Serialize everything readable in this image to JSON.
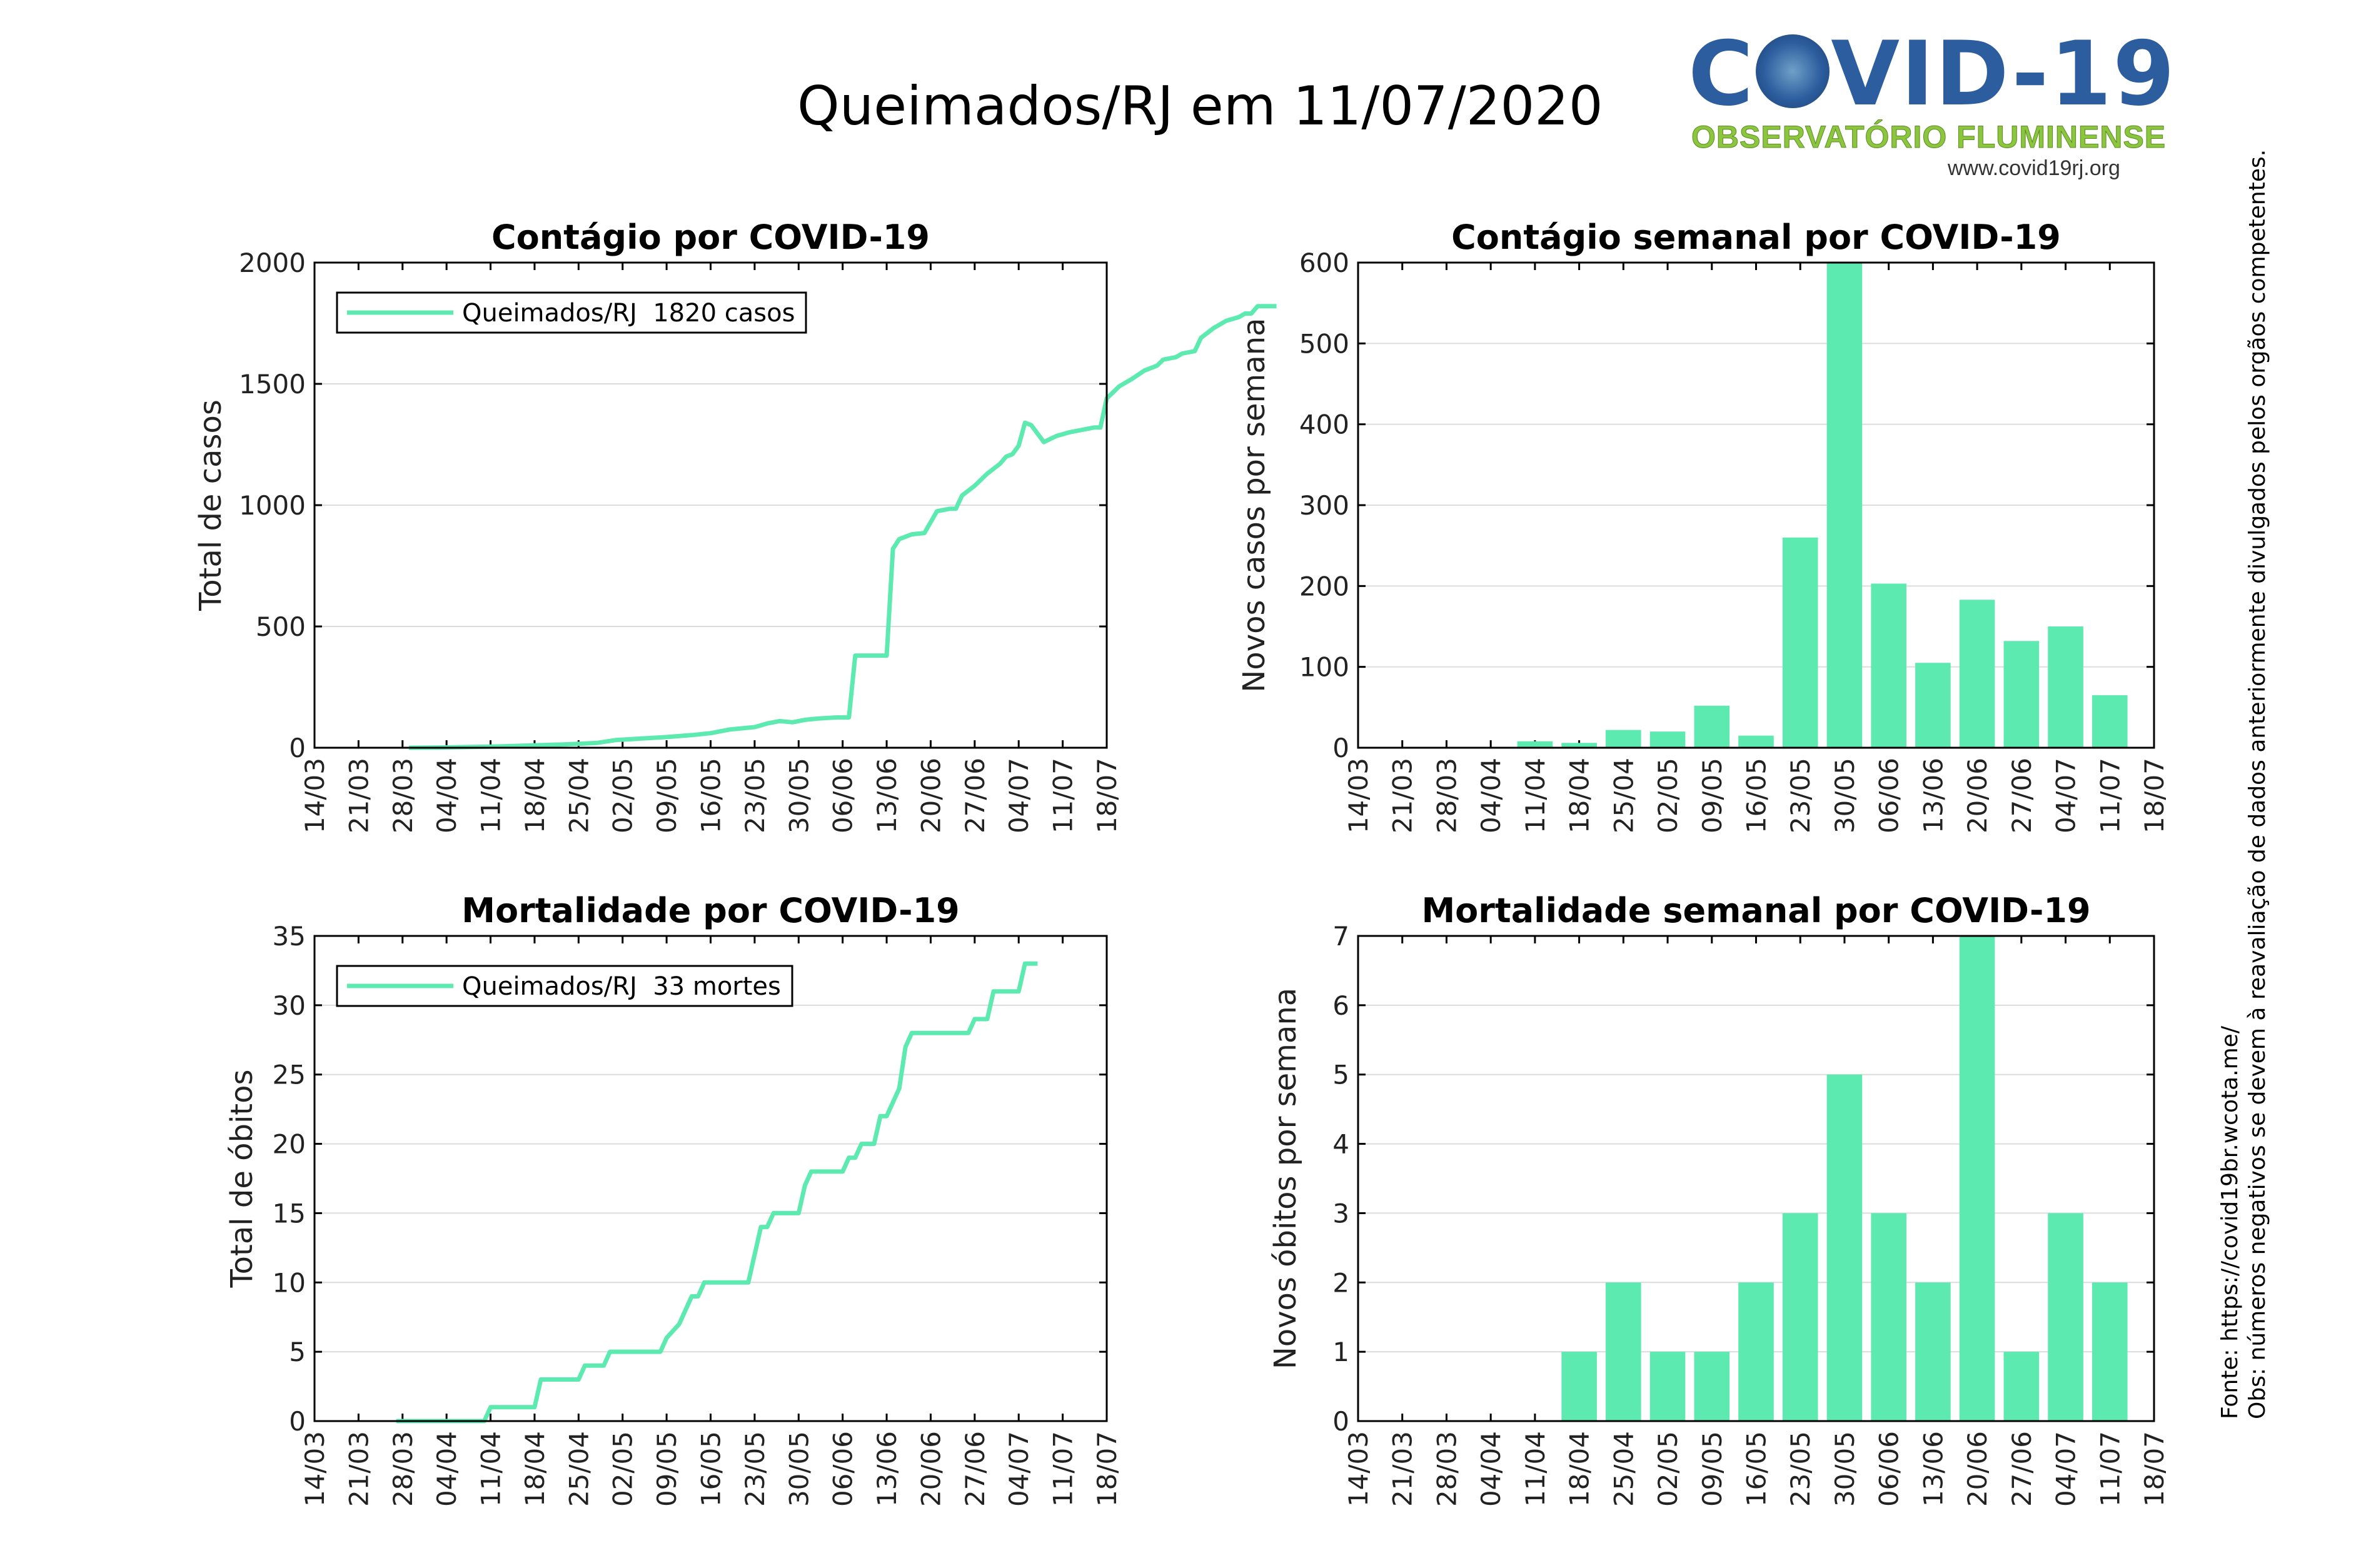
{
  "header": {
    "title": "Queimados/RJ em 11/07/2020",
    "logo_title_left": "C",
    "logo_title_right": "VID-19",
    "logo_subtitle": "OBSERVATÓRIO FLUMINENSE",
    "logo_url": "www.covid19rj.org"
  },
  "notes": {
    "source": "Fonte: https://covid19br.wcota.me/",
    "obs": "Obs: números negativos se devem à reavaliação de dados anteriormente divulgados pelos orgãos competentes."
  },
  "colors": {
    "series": "#5ceab0"
  },
  "date_ticks": [
    "14/03",
    "21/03",
    "28/03",
    "04/04",
    "11/04",
    "18/04",
    "25/04",
    "02/05",
    "09/05",
    "16/05",
    "23/05",
    "30/05",
    "06/06",
    "13/06",
    "20/06",
    "27/06",
    "04/07",
    "11/07",
    "18/07"
  ],
  "chart_data": [
    {
      "id": "cases-cumulative",
      "type": "line",
      "title": "Contágio por COVID-19",
      "ylabel": "Total de casos",
      "xlabel": "",
      "ylim": [
        0,
        2000
      ],
      "yticks": [
        0,
        500,
        1000,
        1500,
        2000
      ],
      "grid": true,
      "legend": "top-left",
      "series": [
        {
          "name": "Queimados/RJ  1820 casos",
          "points": [
            [
              15,
              0
            ],
            [
              20,
              1
            ],
            [
              25,
              3
            ],
            [
              30,
              6
            ],
            [
              35,
              10
            ],
            [
              40,
              14
            ],
            [
              45,
              20
            ],
            [
              48,
              32
            ],
            [
              52,
              38
            ],
            [
              56,
              44
            ],
            [
              60,
              52
            ],
            [
              63,
              60
            ],
            [
              66,
              75
            ],
            [
              70,
              85
            ],
            [
              72,
              100
            ],
            [
              74,
              110
            ],
            [
              76,
              105
            ],
            [
              78,
              115
            ],
            [
              80,
              120
            ],
            [
              83,
              125
            ],
            [
              85,
              125
            ],
            [
              86,
              380
            ],
            [
              91,
              380
            ],
            [
              92,
              820
            ],
            [
              93,
              860
            ],
            [
              95,
              880
            ],
            [
              97,
              885
            ],
            [
              98,
              930
            ],
            [
              99,
              975
            ],
            [
              101,
              985
            ],
            [
              102,
              985
            ],
            [
              103,
              1040
            ],
            [
              105,
              1080
            ],
            [
              107,
              1130
            ],
            [
              109,
              1170
            ],
            [
              110,
              1200
            ],
            [
              111,
              1210
            ],
            [
              112,
              1245
            ],
            [
              113,
              1340
            ],
            [
              114,
              1330
            ],
            [
              116,
              1260
            ],
            [
              118,
              1285
            ],
            [
              120,
              1300
            ],
            [
              122,
              1310
            ],
            [
              124,
              1320
            ],
            [
              125,
              1320
            ],
            [
              126,
              1440
            ],
            [
              128,
              1490
            ],
            [
              130,
              1520
            ],
            [
              132,
              1555
            ],
            [
              134,
              1575
            ],
            [
              135,
              1600
            ],
            [
              137,
              1610
            ],
            [
              138,
              1625
            ],
            [
              140,
              1635
            ],
            [
              141,
              1690
            ],
            [
              143,
              1730
            ],
            [
              145,
              1760
            ],
            [
              147,
              1775
            ],
            [
              148,
              1790
            ],
            [
              149,
              1790
            ],
            [
              150,
              1820
            ],
            [
              153,
              1820
            ]
          ]
        }
      ]
    },
    {
      "id": "cases-weekly",
      "type": "bar",
      "title": "Contágio semanal por COVID-19",
      "ylabel": "Novos casos por semana",
      "xlabel": "",
      "ylim": [
        0,
        600
      ],
      "yticks": [
        0,
        100,
        200,
        300,
        400,
        500,
        600
      ],
      "grid": true,
      "categories": [
        "11/04",
        "18/04",
        "25/04",
        "02/05",
        "09/05",
        "16/05",
        "23/05",
        "30/05",
        "06/06",
        "13/06",
        "20/06",
        "27/06",
        "04/07",
        "11/07"
      ],
      "values": [
        8,
        6,
        22,
        20,
        52,
        15,
        260,
        600,
        203,
        105,
        183,
        132,
        150,
        65
      ]
    },
    {
      "id": "deaths-cumulative",
      "type": "line",
      "title": "Mortalidade por COVID-19",
      "ylabel": "Total de óbitos",
      "xlabel": "",
      "ylim": [
        0,
        35
      ],
      "yticks": [
        0,
        5,
        10,
        15,
        20,
        25,
        30,
        35
      ],
      "grid": true,
      "legend": "top-left",
      "series": [
        {
          "name": "Queimados/RJ  33 mortes",
          "points": [
            [
              13,
              0
            ],
            [
              27,
              0
            ],
            [
              28,
              1
            ],
            [
              35,
              1
            ],
            [
              36,
              3
            ],
            [
              42,
              3
            ],
            [
              43,
              4
            ],
            [
              46,
              4
            ],
            [
              47,
              5
            ],
            [
              55,
              5
            ],
            [
              56,
              6
            ],
            [
              58,
              7
            ],
            [
              60,
              9
            ],
            [
              61,
              9
            ],
            [
              62,
              10
            ],
            [
              69,
              10
            ],
            [
              71,
              14
            ],
            [
              72,
              14
            ],
            [
              73,
              15
            ],
            [
              77,
              15
            ],
            [
              78,
              17
            ],
            [
              79,
              18
            ],
            [
              84,
              18
            ],
            [
              85,
              19
            ],
            [
              86,
              19
            ],
            [
              87,
              20
            ],
            [
              89,
              20
            ],
            [
              90,
              22
            ],
            [
              91,
              22
            ],
            [
              92,
              23
            ],
            [
              93,
              24
            ],
            [
              94,
              27
            ],
            [
              95,
              28
            ],
            [
              104,
              28
            ],
            [
              105,
              29
            ],
            [
              107,
              29
            ],
            [
              108,
              31
            ],
            [
              112,
              31
            ],
            [
              113,
              33
            ],
            [
              115,
              33
            ]
          ]
        }
      ]
    },
    {
      "id": "deaths-weekly",
      "type": "bar",
      "title": "Mortalidade semanal por COVID-19",
      "ylabel": "Novos óbitos por semana",
      "xlabel": "",
      "ylim": [
        0,
        7
      ],
      "yticks": [
        0,
        1,
        2,
        3,
        4,
        5,
        6,
        7
      ],
      "grid": true,
      "categories": [
        "18/04",
        "25/04",
        "02/05",
        "09/05",
        "16/05",
        "23/05",
        "30/05",
        "06/06",
        "13/06",
        "20/06",
        "27/06",
        "04/07",
        "11/07"
      ],
      "values": [
        1,
        2,
        1,
        1,
        2,
        3,
        5,
        3,
        2,
        7,
        1,
        3,
        2
      ]
    }
  ]
}
